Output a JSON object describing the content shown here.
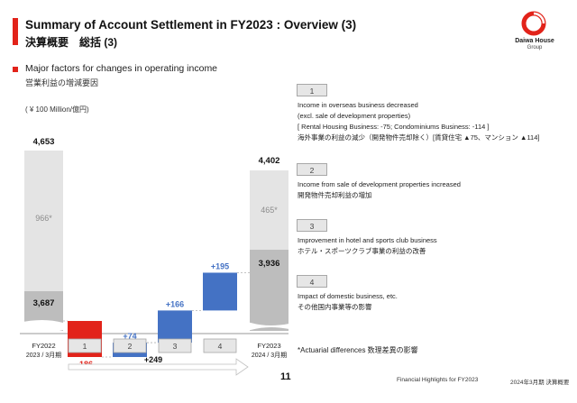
{
  "header": {
    "title_en": "Summary of Account Settlement in FY2023 : Overview (3)",
    "title_jp": "決算概要　総括 (3)",
    "logo_text": "Daiwa House",
    "logo_sub": "Group"
  },
  "section": {
    "title_en": "Major factors for changes in operating income",
    "title_jp": "営業利益の増減要因",
    "unit": "( ¥ 100 Million/億円)"
  },
  "chart_data": {
    "type": "bar",
    "subtype": "waterfall",
    "start": {
      "label_top": "FY2022",
      "label_bottom": "2023 / 3月期",
      "total": "4,653",
      "actuarial": "966*",
      "base": "3,687"
    },
    "end": {
      "label_top": "FY2023",
      "label_bottom": "2024 / 3月期",
      "total": "4,402",
      "actuarial": "465*",
      "base": "3,936"
    },
    "steps": [
      {
        "category": "1",
        "value": -186,
        "label": "-186",
        "color": "#e2231a"
      },
      {
        "category": "2",
        "value": 74,
        "label": "+74",
        "color": "#4472c4"
      },
      {
        "category": "3",
        "value": 166,
        "label": "+166",
        "color": "#4472c4"
      },
      {
        "category": "4",
        "value": 195,
        "label": "+195",
        "color": "#4472c4"
      }
    ],
    "net_change": "+249"
  },
  "factors": [
    {
      "num": "1",
      "lines": [
        "Income in overseas business decreased",
        "(excl. sale of development properties)",
        "[ Rental Housing Business: -75; Condominiums Business: -114 ]",
        "海外事業の利益の減少（開発物件売却除く）[賃貸住宅 ▲75、マンション ▲114]"
      ]
    },
    {
      "num": "2",
      "lines": [
        "Income from sale of development properties increased",
        "開発物件売却利益の増加"
      ]
    },
    {
      "num": "3",
      "lines": [
        "Improvement in hotel and sports club business",
        "ホテル・スポーツクラブ事業の利益の改善"
      ]
    },
    {
      "num": "4",
      "lines": [
        "Impact of domestic business, etc.",
        "その他国内事業等の影響"
      ]
    }
  ],
  "note": "*Actuarial differences 数理差異の影響",
  "footer": {
    "page": "11",
    "left": "Financial Highlights for FY2023",
    "right": "2024年3月期 決算概要"
  },
  "colors": {
    "accent": "#e2231a",
    "positive": "#4472c4",
    "negative": "#e2231a",
    "total_light": "#e4e4e4",
    "total_dark": "#bdbdbd"
  }
}
